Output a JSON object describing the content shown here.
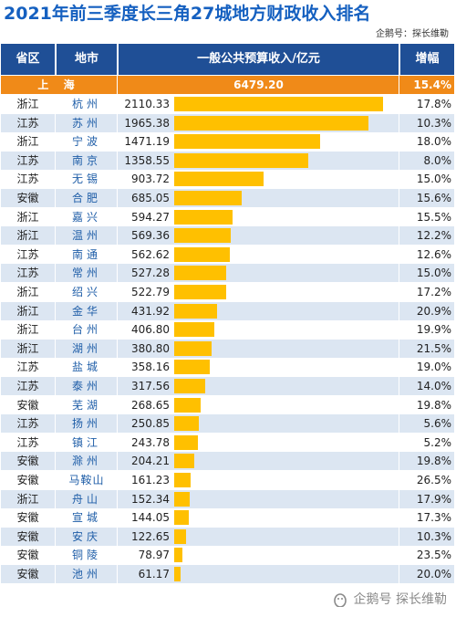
{
  "title": "2021年前三季度长三角27城地方财政收入排名",
  "credit": "企鹅号：探长维勒",
  "headers": {
    "province": "省区",
    "city": "地市",
    "revenue": "一般公共预算收入/亿元",
    "growth": "增幅"
  },
  "shanghai": {
    "city": "上 海",
    "value": "6479.20",
    "growth": "15.4%"
  },
  "chart_data": {
    "type": "bar",
    "categories": [
      "杭州",
      "苏州",
      "宁波",
      "南京",
      "无锡",
      "合肥",
      "嘉兴",
      "温州",
      "南通",
      "常州",
      "绍兴",
      "金华",
      "台州",
      "湖州",
      "盐城",
      "泰州",
      "芜湖",
      "扬州",
      "镇江",
      "滁州",
      "马鞍山",
      "舟山",
      "宣城",
      "安庆",
      "铜陵",
      "池州"
    ],
    "values": [
      2110.33,
      1965.38,
      1471.19,
      1358.55,
      903.72,
      685.05,
      594.27,
      569.36,
      562.62,
      527.28,
      522.79,
      431.92,
      406.8,
      380.8,
      358.16,
      317.56,
      268.65,
      250.85,
      243.78,
      204.21,
      161.23,
      152.34,
      144.05,
      122.65,
      78.97,
      61.17
    ],
    "value_labels": [
      "2110.33",
      "1965.38",
      "1471.19",
      "1358.55",
      "903.72",
      "685.05",
      "594.27",
      "569.36",
      "562.62",
      "527.28",
      "522.79",
      "431.92",
      "406.80",
      "380.80",
      "358.16",
      "317.56",
      "268.65",
      "250.85",
      "243.78",
      "204.21",
      "161.23",
      "152.34",
      "144.05",
      "122.65",
      "78.97",
      "61.17"
    ],
    "provinces": [
      "浙江",
      "江苏",
      "浙江",
      "江苏",
      "江苏",
      "安徽",
      "浙江",
      "浙江",
      "江苏",
      "江苏",
      "浙江",
      "浙江",
      "浙江",
      "浙江",
      "江苏",
      "江苏",
      "安徽",
      "江苏",
      "江苏",
      "安徽",
      "安徽",
      "浙江",
      "安徽",
      "安徽",
      "安徽",
      "安徽"
    ],
    "growth": [
      "17.8%",
      "10.3%",
      "18.0%",
      "8.0%",
      "15.0%",
      "15.6%",
      "15.5%",
      "12.2%",
      "12.6%",
      "15.0%",
      "17.2%",
      "20.9%",
      "19.9%",
      "21.5%",
      "19.0%",
      "14.0%",
      "19.8%",
      "5.6%",
      "5.2%",
      "19.8%",
      "26.5%",
      "17.9%",
      "17.3%",
      "10.3%",
      "23.5%",
      "20.0%"
    ],
    "bar_color": "#ffc000",
    "ylim": [
      0,
      2250
    ]
  },
  "colors": {
    "header": "#1f4f96",
    "shanghai_row": "#f08a18",
    "stripe": "#dce6f2",
    "title": "#1560c0"
  },
  "watermark": {
    "icon": "penguin-icon",
    "text": "企鹅号 探长维勒"
  }
}
